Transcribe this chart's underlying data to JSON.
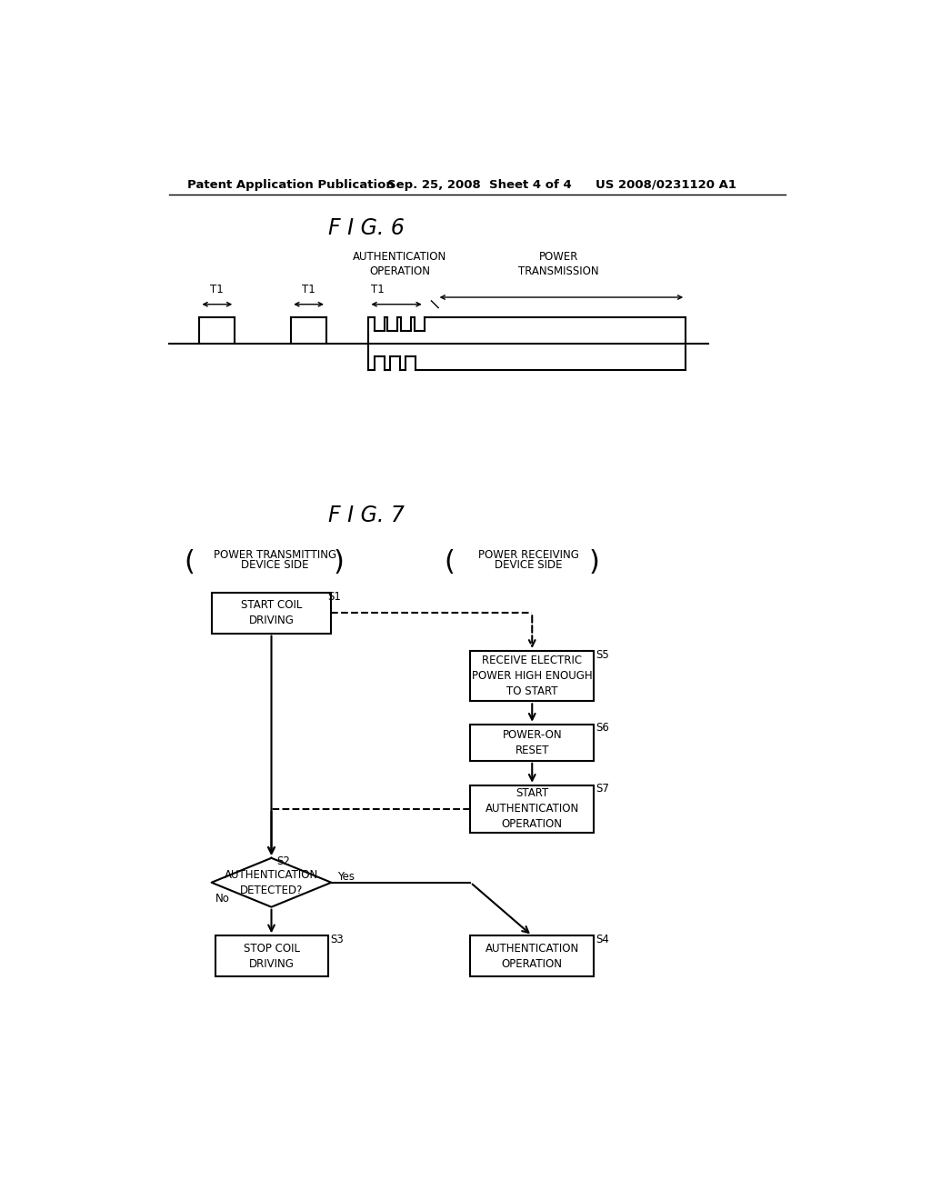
{
  "bg_color": "#ffffff",
  "header_line1": "Patent Application Publication",
  "header_line2": "Sep. 25, 2008  Sheet 4 of 4",
  "header_line3": "US 2008/0231120 A1",
  "fig6_title": "F I G. 6",
  "fig7_title": "F I G. 7",
  "auth_op_label": "AUTHENTICATION\nOPERATION",
  "power_trans_label": "POWER\nTRANSMISSION",
  "t1_label": "T1",
  "left_header_line1": "POWER TRANSMITTING",
  "left_header_line2": "DEVICE SIDE",
  "right_header_line1": "POWER RECEIVING",
  "right_header_line2": "DEVICE SIDE",
  "s1_label": "START COIL\nDRIVING",
  "s1_step": "S1",
  "s5_label": "RECEIVE ELECTRIC\nPOWER HIGH ENOUGH\nTO START",
  "s5_step": "S5",
  "s6_label": "POWER-ON\nRESET",
  "s6_step": "S6",
  "s7_label": "START\nAUTHENTICATION\nOPERATION",
  "s7_step": "S7",
  "s2_label": "AUTHENTICATION\nDETECTED?",
  "s2_step": "S2",
  "s3_label": "STOP COIL\nDRIVING",
  "s3_step": "S3",
  "s4_label": "AUTHENTICATION\nOPERATION",
  "s4_step": "S4",
  "yes_label": "Yes",
  "no_label": "No"
}
